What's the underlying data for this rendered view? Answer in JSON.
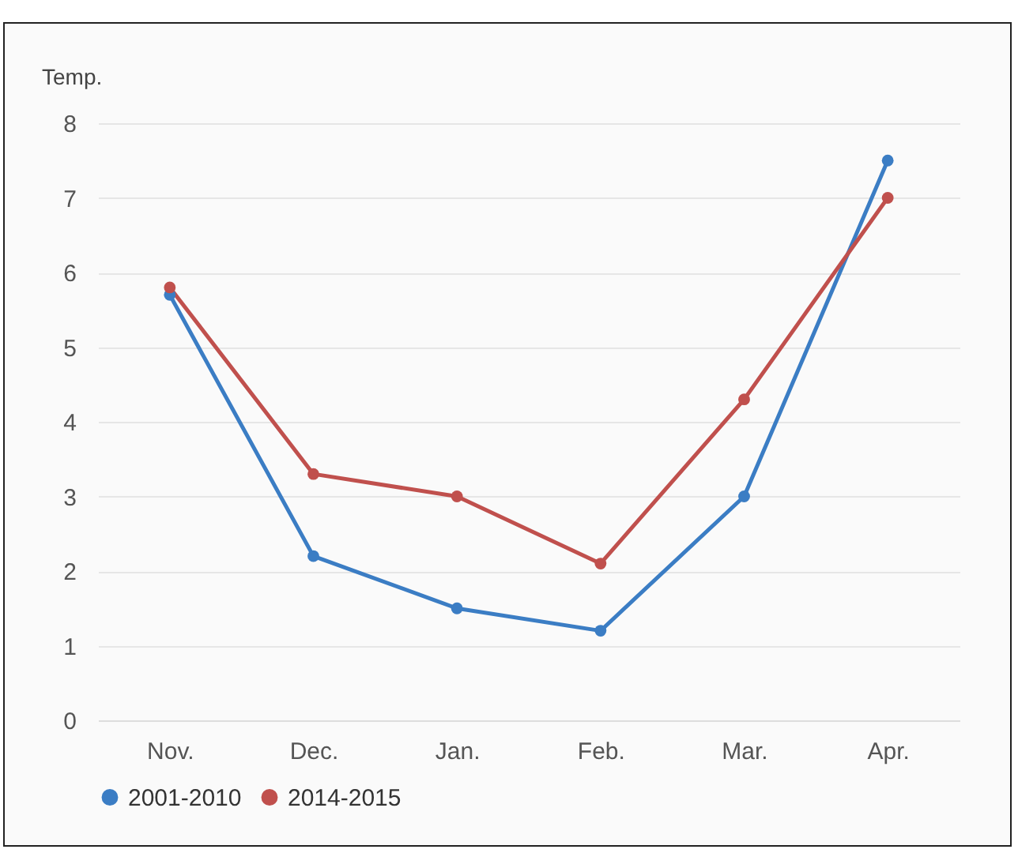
{
  "chart_data": {
    "type": "line",
    "ylabel": "Temp.",
    "categories": [
      "Nov.",
      "Dec.",
      "Jan.",
      "Feb.",
      "Mar.",
      "Apr."
    ],
    "series": [
      {
        "name": "2001-2010",
        "color": "#3b7dc4",
        "values": [
          5.7,
          2.2,
          1.5,
          1.2,
          3.0,
          7.5
        ]
      },
      {
        "name": "2014-2015",
        "color": "#c0504d",
        "values": [
          5.8,
          3.3,
          3.0,
          2.1,
          4.3,
          7.0
        ]
      }
    ],
    "ylim": [
      0,
      8
    ],
    "yticks": [
      0,
      1,
      2,
      3,
      4,
      5,
      6,
      7,
      8
    ],
    "grid": "y",
    "legend": "bottom",
    "marker": "circle",
    "line_style": "solid"
  }
}
